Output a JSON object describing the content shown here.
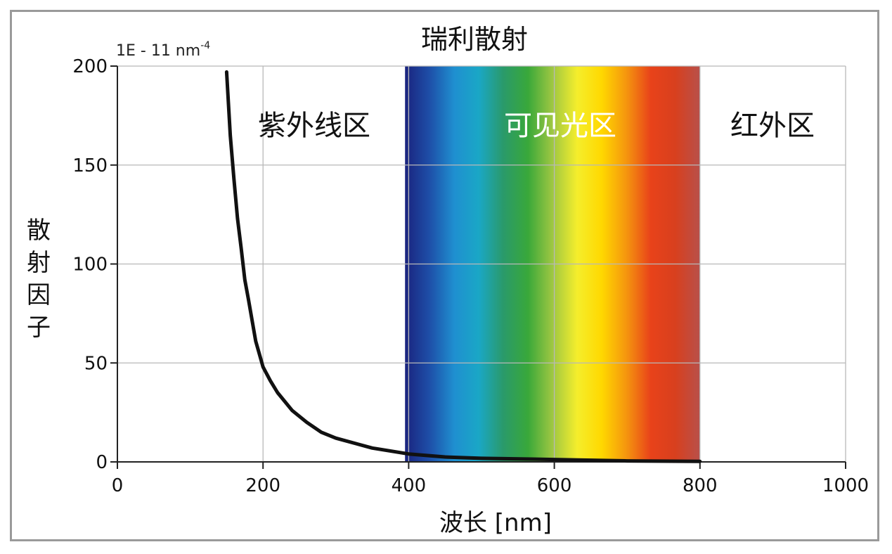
{
  "chart_data": {
    "type": "line",
    "title": "瑞利散射",
    "unit_label": "1E - 11 nm",
    "unit_exponent": "-4",
    "xlabel": "波长 [nm]",
    "ylabel": "散射因子",
    "xlim": [
      0,
      1000
    ],
    "ylim": [
      0,
      200
    ],
    "x_ticks": [
      0,
      200,
      400,
      600,
      800,
      1000
    ],
    "y_ticks": [
      0,
      50,
      100,
      150,
      200
    ],
    "grid": true,
    "regions": [
      {
        "label": "紫外线区",
        "x_range": [
          150,
          395
        ],
        "color": "#111111"
      },
      {
        "label": "可见光区",
        "x_range": [
          395,
          800
        ],
        "color": "#ffffff"
      },
      {
        "label": "红外区",
        "x_range": [
          800,
          1000
        ],
        "color": "#111111"
      }
    ],
    "spectrum_stops": [
      "#1a237e",
      "#1e4fa8",
      "#1f8fd0",
      "#1aa7c6",
      "#2a9a6a",
      "#39a83a",
      "#9ec742",
      "#f5ee2c",
      "#ffd800",
      "#f5960e",
      "#e8421a",
      "#d8401e",
      "#b8504a"
    ],
    "series": [
      {
        "x": [
          150,
          155,
          160,
          165,
          170,
          175,
          180,
          190,
          200,
          210,
          220,
          240,
          260,
          280,
          300,
          350,
          400,
          450,
          500,
          600,
          700,
          800
        ],
        "y": [
          197,
          165,
          143,
          123,
          108,
          92,
          82,
          61,
          48,
          41,
          35,
          26,
          20,
          15,
          12,
          7,
          4,
          2.5,
          1.8,
          1.2,
          0.5,
          0.3
        ]
      }
    ]
  }
}
